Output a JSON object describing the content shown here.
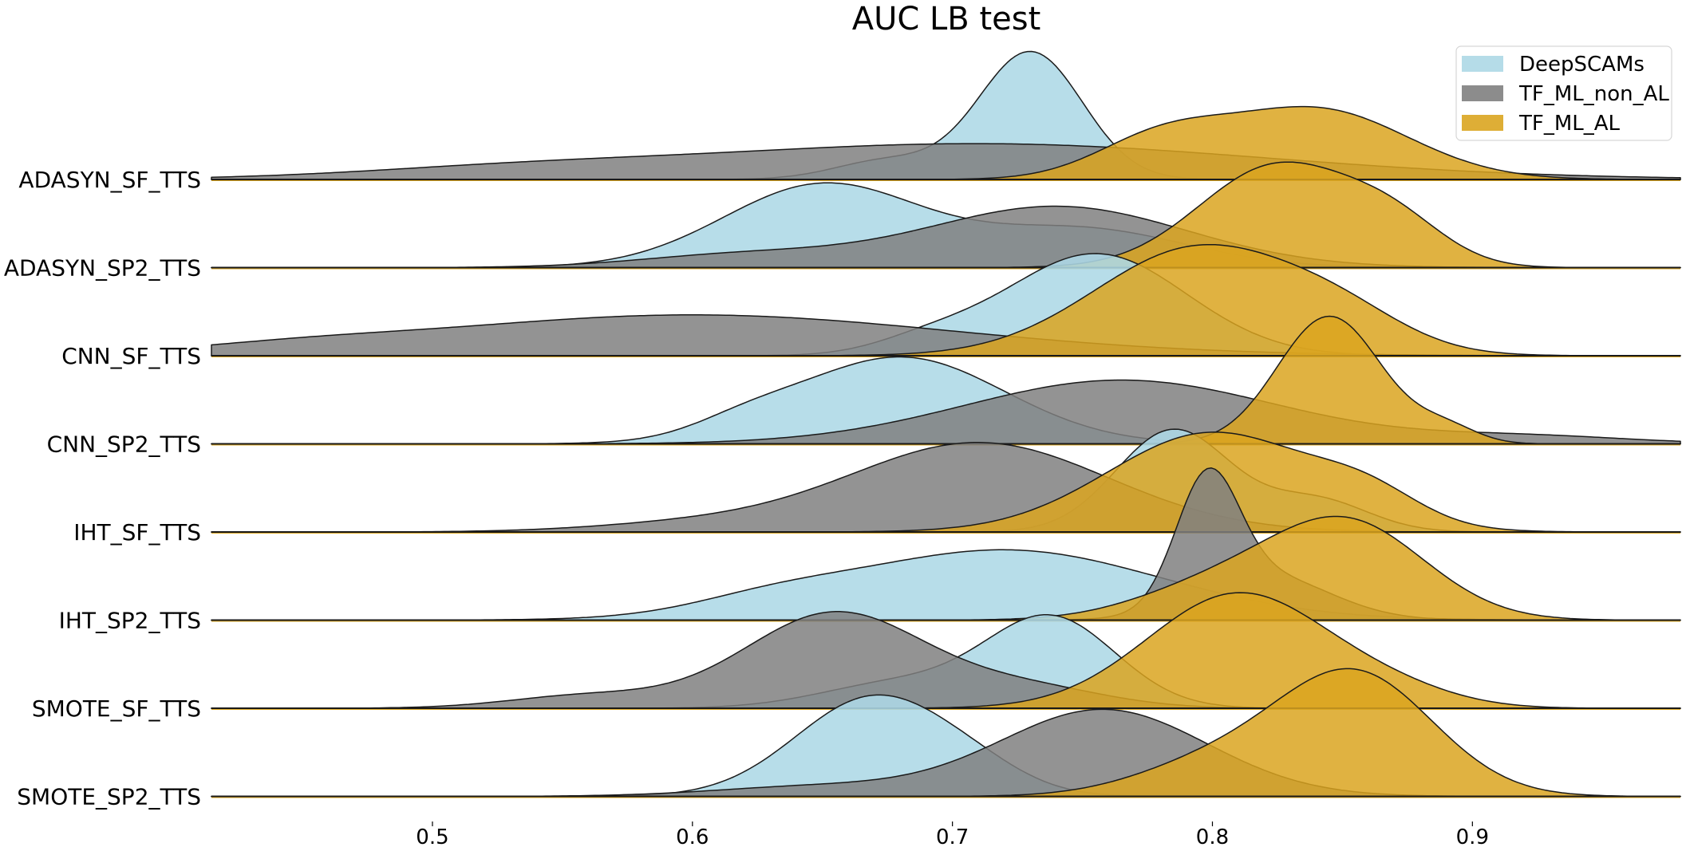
{
  "chart_data": {
    "type": "area",
    "subtype": "ridgeline density",
    "title": "AUC LB test",
    "xlabel": "",
    "ylabel": "",
    "xlim": [
      0.415,
      0.98
    ],
    "xticks": [
      0.5,
      0.6,
      0.7,
      0.8,
      0.9
    ],
    "xtick_labels": [
      "0.5",
      "0.6",
      "0.7",
      "0.8",
      "0.9"
    ],
    "grid": false,
    "legend_position": "top-right",
    "series": [
      {
        "name": "DeepSCAMs",
        "color": "#ADD8E6"
      },
      {
        "name": "TF_ML_non_AL",
        "color": "#808080"
      },
      {
        "name": "TF_ML_AL",
        "color": "#DAA520"
      }
    ],
    "categories": [
      "ADASYN_SF_TTS",
      "ADASYN_SP2_TTS",
      "CNN_SF_TTS",
      "CNN_SP2_TTS",
      "IHT_SF_TTS",
      "IHT_SP2_TTS",
      "SMOTE_SF_TTS",
      "SMOTE_SP2_TTS"
    ],
    "density_components": [
      {
        "DeepSCAMs": [
          [
            0.73,
            0.02,
            1.0
          ],
          [
            0.675,
            0.02,
            0.15
          ]
        ],
        "TF_ML_non_AL": [
          [
            0.71,
            0.11,
            0.28
          ],
          [
            0.53,
            0.06,
            0.06
          ]
        ],
        "TF_ML_AL": [
          [
            0.84,
            0.035,
            0.55
          ],
          [
            0.78,
            0.025,
            0.3
          ]
        ]
      },
      {
        "DeepSCAMs": [
          [
            0.65,
            0.038,
            0.65
          ],
          [
            0.75,
            0.04,
            0.3
          ]
        ],
        "TF_ML_non_AL": [
          [
            0.74,
            0.05,
            0.48
          ],
          [
            0.62,
            0.04,
            0.1
          ]
        ],
        "TF_ML_AL": [
          [
            0.825,
            0.03,
            0.8
          ],
          [
            0.87,
            0.02,
            0.28
          ]
        ]
      },
      {
        "DeepSCAMs": [
          [
            0.755,
            0.035,
            0.8
          ],
          [
            0.69,
            0.02,
            0.1
          ]
        ],
        "TF_ML_non_AL": [
          [
            0.6,
            0.1,
            0.32
          ],
          [
            0.45,
            0.04,
            0.04
          ]
        ],
        "TF_ML_AL": [
          [
            0.795,
            0.04,
            0.85
          ],
          [
            0.85,
            0.025,
            0.2
          ]
        ]
      },
      {
        "DeepSCAMs": [
          [
            0.68,
            0.04,
            0.68
          ],
          [
            0.62,
            0.02,
            0.1
          ]
        ],
        "TF_ML_non_AL": [
          [
            0.765,
            0.06,
            0.5
          ],
          [
            0.92,
            0.04,
            0.06
          ]
        ],
        "TF_ML_AL": [
          [
            0.845,
            0.02,
            1.0
          ],
          [
            0.89,
            0.012,
            0.12
          ]
        ]
      },
      {
        "DeepSCAMs": [
          [
            0.785,
            0.022,
            0.8
          ],
          [
            0.84,
            0.02,
            0.25
          ]
        ],
        "TF_ML_non_AL": [
          [
            0.71,
            0.05,
            0.7
          ],
          [
            0.6,
            0.04,
            0.06
          ]
        ],
        "TF_ML_AL": [
          [
            0.8,
            0.04,
            0.78
          ],
          [
            0.86,
            0.02,
            0.2
          ]
        ]
      },
      {
        "DeepSCAMs": [
          [
            0.72,
            0.06,
            0.55
          ],
          [
            0.63,
            0.03,
            0.1
          ]
        ],
        "TF_ML_non_AL": [
          [
            0.798,
            0.012,
            0.95
          ],
          [
            0.82,
            0.025,
            0.35
          ]
        ],
        "TF_ML_AL": [
          [
            0.852,
            0.03,
            0.75
          ],
          [
            0.8,
            0.03,
            0.25
          ]
        ]
      },
      {
        "DeepSCAMs": [
          [
            0.738,
            0.025,
            0.7
          ],
          [
            0.68,
            0.03,
            0.2
          ]
        ],
        "TF_ML_non_AL": [
          [
            0.655,
            0.035,
            0.75
          ],
          [
            0.56,
            0.03,
            0.1
          ],
          [
            0.73,
            0.03,
            0.15
          ]
        ],
        "TF_ML_AL": [
          [
            0.81,
            0.035,
            0.9
          ],
          [
            0.87,
            0.025,
            0.1
          ]
        ]
      },
      {
        "DeepSCAMs": [
          [
            0.67,
            0.03,
            0.78
          ],
          [
            0.71,
            0.02,
            0.1
          ]
        ],
        "TF_ML_non_AL": [
          [
            0.758,
            0.04,
            0.68
          ],
          [
            0.65,
            0.04,
            0.08
          ]
        ],
        "TF_ML_AL": [
          [
            0.855,
            0.03,
            0.95
          ],
          [
            0.8,
            0.03,
            0.25
          ]
        ]
      }
    ]
  }
}
